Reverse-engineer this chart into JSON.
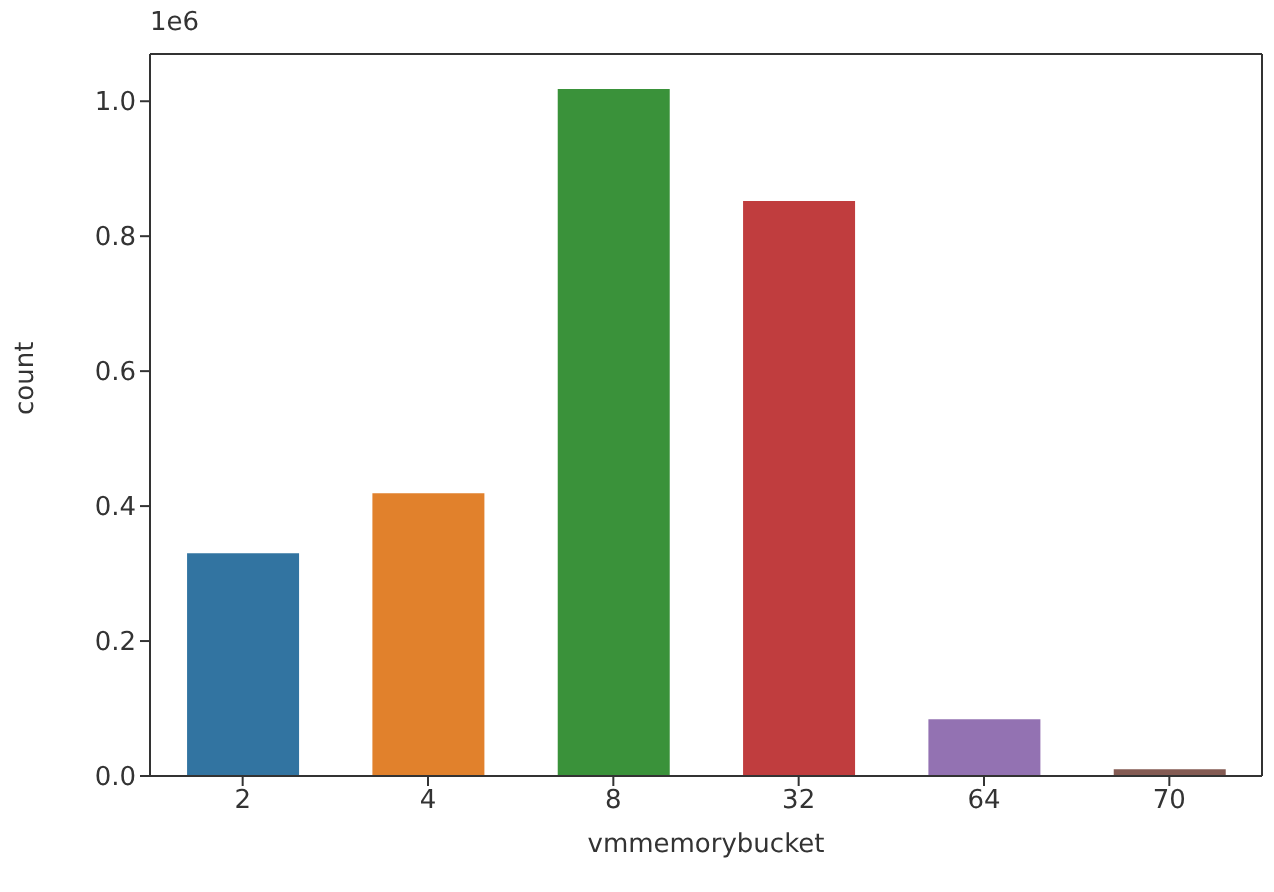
{
  "chart_data": {
    "type": "bar",
    "xlabel": "vmmemorybucket",
    "ylabel": "count",
    "categories": [
      "2",
      "4",
      "8",
      "32",
      "64",
      "70"
    ],
    "values": [
      0.33,
      0.419,
      1.018,
      0.852,
      0.084,
      0.01
    ],
    "colors": [
      "#3274a1",
      "#e1812c",
      "#3a923a",
      "#c03d3e",
      "#9372b2",
      "#845b53"
    ],
    "ylim": [
      0,
      1.07
    ],
    "yticks": [
      {
        "value": 0,
        "label": "0.0"
      },
      0.2,
      0.4,
      0.6,
      0.8,
      {
        "value": 1,
        "label": "1.0"
      }
    ],
    "annotations": [
      "1e6"
    ],
    "grid": false,
    "legend": false
  }
}
